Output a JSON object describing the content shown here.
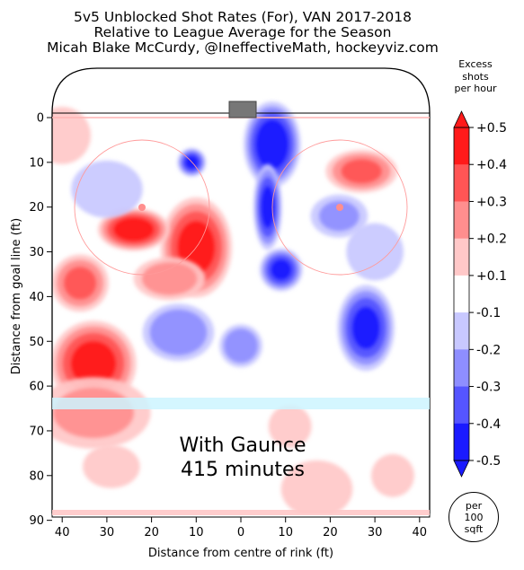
{
  "title_lines": [
    "5v5 Unblocked Shot Rates (For), VAN 2017-2018",
    "Relative to League Average for the Season",
    "Micah Blake McCurdy, @IneffectiveMath, hockeyviz.com"
  ],
  "annotation": {
    "line1": "With Gaunce",
    "line2": "415 minutes"
  },
  "colorbar": {
    "title_lines": [
      "Excess",
      "shots",
      "per hour"
    ],
    "labels": [
      "+0.5",
      "+0.4",
      "+0.3",
      "+0.2",
      "+0.1",
      "-0.1",
      "-0.2",
      "-0.3",
      "-0.4",
      "-0.5"
    ],
    "colors": [
      "#ff1a1a",
      "#ff5555",
      "#ff8e8e",
      "#ffc8c8",
      "#ffffff",
      "#c8c8ff",
      "#8e8eff",
      "#5555ff",
      "#1a1aff"
    ]
  },
  "per_unit": [
    "per",
    "100",
    "sqft"
  ],
  "chart_data": {
    "type": "heatmap",
    "xlabel": "Distance from centre of rink (ft)",
    "ylabel": "Distance from goal line (ft)",
    "x_ticks": [
      "40",
      "30",
      "20",
      "10",
      "0",
      "10",
      "20",
      "30",
      "40"
    ],
    "y_ticks": [
      "0",
      "10",
      "20",
      "30",
      "40",
      "50",
      "60",
      "70",
      "80",
      "90"
    ],
    "xlim": [
      -42,
      42
    ],
    "ylim": [
      0,
      90
    ],
    "colorscale_range": [
      -0.5,
      0.5
    ],
    "blobs": [
      {
        "x": -33,
        "y": 55,
        "value": 0.42,
        "rx": 6,
        "ry": 6
      },
      {
        "x": -36,
        "y": 37,
        "value": 0.3,
        "rx": 4,
        "ry": 4
      },
      {
        "x": -40,
        "y": 4,
        "value": 0.16,
        "rx": 4,
        "ry": 4
      },
      {
        "x": -10,
        "y": 29,
        "value": 0.42,
        "rx": 5,
        "ry": 7
      },
      {
        "x": -16,
        "y": 36,
        "value": 0.25,
        "rx": 5,
        "ry": 3
      },
      {
        "x": 27,
        "y": 12,
        "value": 0.3,
        "rx": 5,
        "ry": 3
      },
      {
        "x": -24,
        "y": 25,
        "value": 0.45,
        "rx": 5,
        "ry": 3
      },
      {
        "x": 7,
        "y": 6,
        "value": -0.46,
        "rx": 4,
        "ry": 6
      },
      {
        "x": 6,
        "y": 20,
        "value": -0.4,
        "rx": 2,
        "ry": 6
      },
      {
        "x": 9,
        "y": 34,
        "value": -0.4,
        "rx": 3,
        "ry": 3
      },
      {
        "x": 28,
        "y": 47,
        "value": -0.4,
        "rx": 4,
        "ry": 6
      },
      {
        "x": -11,
        "y": 10,
        "value": -0.4,
        "rx": 2,
        "ry": 2
      },
      {
        "x": -14,
        "y": 48,
        "value": -0.28,
        "rx": 5,
        "ry": 4
      },
      {
        "x": 0,
        "y": 51,
        "value": -0.28,
        "rx": 3,
        "ry": 3
      },
      {
        "x": 22,
        "y": 22,
        "value": -0.2,
        "rx": 4,
        "ry": 3
      },
      {
        "x": -30,
        "y": 16,
        "value": -0.15,
        "rx": 5,
        "ry": 4
      },
      {
        "x": 30,
        "y": 30,
        "value": -0.12,
        "rx": 4,
        "ry": 4
      },
      {
        "x": -29,
        "y": 78,
        "value": 0.18,
        "rx": 4,
        "ry": 3
      },
      {
        "x": 17,
        "y": 83,
        "value": 0.16,
        "rx": 5,
        "ry": 4
      },
      {
        "x": 34,
        "y": 80,
        "value": 0.15,
        "rx": 3,
        "ry": 3
      },
      {
        "x": 11,
        "y": 69,
        "value": 0.15,
        "rx": 3,
        "ry": 3
      },
      {
        "x": -33,
        "y": 66,
        "value": 0.2,
        "rx": 8,
        "ry": 5
      }
    ]
  }
}
